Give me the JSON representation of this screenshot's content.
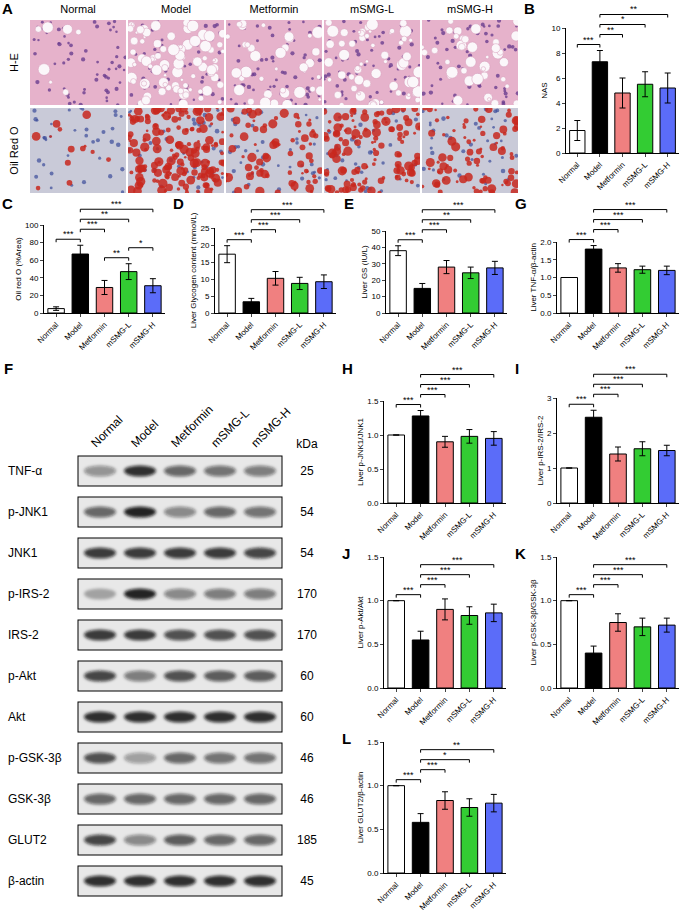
{
  "chart_data": [
    {
      "panel": "B",
      "type": "bar",
      "ylabel": "NAS",
      "categories": [
        "Normal",
        "Model",
        "Metformin",
        "mSMG-L",
        "mSMG-H"
      ],
      "values": [
        1.8,
        7.3,
        4.8,
        5.5,
        5.2
      ],
      "errors": [
        0.8,
        0.9,
        1.2,
        1.0,
        1.2
      ],
      "colors": [
        "#ffffff",
        "#000000",
        "#f08080",
        "#33cc33",
        "#5b6cf9"
      ],
      "ylim": [
        0,
        10
      ],
      "yticks": [
        0,
        2,
        4,
        6,
        8,
        10
      ],
      "significance": [
        {
          "from": "Normal",
          "to": "Model",
          "label": "***"
        },
        {
          "from": "Model",
          "to": "Metformin",
          "label": "**"
        },
        {
          "from": "Model",
          "to": "mSMG-L",
          "label": "*"
        },
        {
          "from": "Model",
          "to": "mSMG-H",
          "label": "**"
        }
      ]
    },
    {
      "panel": "C",
      "type": "bar",
      "ylabel": "Oil red O (%Area)",
      "categories": [
        "Normal",
        "Model",
        "Metformin",
        "mSMG-L",
        "mSMG-H"
      ],
      "values": [
        5,
        67,
        29,
        47,
        31
      ],
      "errors": [
        2,
        10,
        8,
        9,
        8
      ],
      "colors": [
        "#ffffff",
        "#000000",
        "#f08080",
        "#33cc33",
        "#5b6cf9"
      ],
      "ylim": [
        0,
        100
      ],
      "yticks": [
        0,
        20,
        40,
        60,
        80,
        100
      ],
      "significance": [
        {
          "from": "Normal",
          "to": "Model",
          "label": "***"
        },
        {
          "from": "Metformin",
          "to": "mSMG-L",
          "label": "**"
        },
        {
          "from": "mSMG-L",
          "to": "mSMG-H",
          "label": "*"
        },
        {
          "from": "Model",
          "to": "Metformin",
          "label": "***"
        },
        {
          "from": "Model",
          "to": "mSMG-L",
          "label": "**"
        },
        {
          "from": "Model",
          "to": "mSMG-H",
          "label": "***"
        }
      ]
    },
    {
      "panel": "D",
      "type": "bar",
      "ylabel": "Liver Glycogen content (mmol/L)",
      "categories": [
        "Normal",
        "Model",
        "Metformin",
        "mSMG-L",
        "mSMG-H"
      ],
      "values": [
        17.3,
        3.3,
        10.2,
        8.7,
        9.2
      ],
      "errors": [
        2.5,
        1.0,
        2.0,
        1.8,
        2.0
      ],
      "colors": [
        "#ffffff",
        "#000000",
        "#f08080",
        "#33cc33",
        "#5b6cf9"
      ],
      "ylim": [
        0,
        25
      ],
      "yticks": [
        0,
        5,
        10,
        15,
        20,
        25
      ],
      "significance": [
        {
          "from": "Normal",
          "to": "Model",
          "label": "***"
        },
        {
          "from": "Model",
          "to": "Metformin",
          "label": "***"
        },
        {
          "from": "Model",
          "to": "mSMG-L",
          "label": "***"
        },
        {
          "from": "Model",
          "to": "mSMG-H",
          "label": "***"
        }
      ]
    },
    {
      "panel": "E",
      "type": "bar",
      "ylabel": "Liver GS (IU/L)",
      "categories": [
        "Normal",
        "Model",
        "Metformin",
        "mSMG-L",
        "mSMG-H"
      ],
      "values": [
        38,
        15,
        28,
        24.5,
        27.5
      ],
      "errors": [
        3,
        3,
        4,
        3.5,
        4
      ],
      "colors": [
        "#ffffff",
        "#000000",
        "#f08080",
        "#33cc33",
        "#5b6cf9"
      ],
      "ylim": [
        0,
        50
      ],
      "yticks": [
        0,
        10,
        20,
        30,
        40,
        50
      ],
      "significance": [
        {
          "from": "Normal",
          "to": "Model",
          "label": "***"
        },
        {
          "from": "Model",
          "to": "Metformin",
          "label": "***"
        },
        {
          "from": "Model",
          "to": "mSMG-L",
          "label": "**"
        },
        {
          "from": "Model",
          "to": "mSMG-H",
          "label": "***"
        }
      ]
    },
    {
      "panel": "G",
      "type": "bar",
      "ylabel": "Liver TNF-α/β-actin",
      "categories": [
        "Normal",
        "Model",
        "Metformin",
        "mSMG-L",
        "mSMG-H"
      ],
      "values": [
        1.0,
        1.8,
        1.27,
        1.22,
        1.2
      ],
      "errors": [
        0,
        0.1,
        0.12,
        0.1,
        0.12
      ],
      "colors": [
        "#ffffff",
        "#000000",
        "#f08080",
        "#33cc33",
        "#5b6cf9"
      ],
      "ylim": [
        0,
        2
      ],
      "yticks": [
        {
          "value": 0,
          "label": "0.0"
        },
        0.5,
        {
          "value": 1,
          "label": "1.0"
        },
        1.5,
        {
          "value": 2,
          "label": "2.0"
        }
      ],
      "significance": [
        {
          "from": "Normal",
          "to": "Model",
          "label": "***"
        },
        {
          "from": "Model",
          "to": "Metformin",
          "label": "***"
        },
        {
          "from": "Model",
          "to": "mSMG-L",
          "label": "***"
        },
        {
          "from": "Model",
          "to": "mSMG-H",
          "label": "***"
        }
      ]
    },
    {
      "panel": "H",
      "type": "bar",
      "ylabel": "Liver p-JNK1/JNK1",
      "categories": [
        "Normal",
        "Model",
        "Metformin",
        "mSMG-L",
        "mSMG-H"
      ],
      "values": [
        1.0,
        1.28,
        0.9,
        0.98,
        0.95
      ],
      "errors": [
        0,
        0.08,
        0.08,
        0.1,
        0.1
      ],
      "colors": [
        "#ffffff",
        "#000000",
        "#f08080",
        "#33cc33",
        "#5b6cf9"
      ],
      "ylim": [
        0,
        1.5
      ],
      "yticks": [
        {
          "value": 0,
          "label": "0.0"
        },
        0.5,
        {
          "value": 1,
          "label": "1.0"
        },
        1.5
      ],
      "significance": [
        {
          "from": "Normal",
          "to": "Model",
          "label": "***"
        },
        {
          "from": "Model",
          "to": "Metformin",
          "label": "***"
        },
        {
          "from": "Model",
          "to": "mSMG-L",
          "label": "***"
        },
        {
          "from": "Model",
          "to": "mSMG-H",
          "label": "***"
        }
      ]
    },
    {
      "panel": "I",
      "type": "bar",
      "ylabel": "Liver p-IRS-2/IRS-2",
      "categories": [
        "Normal",
        "Model",
        "Metformin",
        "mSMG-L",
        "mSMG-H"
      ],
      "values": [
        1.0,
        2.45,
        1.4,
        1.55,
        1.5
      ],
      "errors": [
        0,
        0.2,
        0.2,
        0.2,
        0.15
      ],
      "colors": [
        "#ffffff",
        "#000000",
        "#f08080",
        "#33cc33",
        "#5b6cf9"
      ],
      "ylim": [
        0,
        3
      ],
      "yticks": [
        0,
        1,
        2,
        3
      ],
      "significance": [
        {
          "from": "Normal",
          "to": "Model",
          "label": "***"
        },
        {
          "from": "Model",
          "to": "Metformin",
          "label": "***"
        },
        {
          "from": "Model",
          "to": "mSMG-L",
          "label": "***"
        },
        {
          "from": "Model",
          "to": "mSMG-H",
          "label": "***"
        }
      ]
    },
    {
      "panel": "J",
      "type": "bar",
      "ylabel": "Liver p-Akt/Akt",
      "categories": [
        "Normal",
        "Model",
        "Metformin",
        "mSMG-L",
        "mSMG-H"
      ],
      "values": [
        1.0,
        0.55,
        0.9,
        0.83,
        0.86
      ],
      "errors": [
        0,
        0.1,
        0.12,
        0.1,
        0.1
      ],
      "colors": [
        "#ffffff",
        "#000000",
        "#f08080",
        "#33cc33",
        "#5b6cf9"
      ],
      "ylim": [
        0,
        1.5
      ],
      "yticks": [
        {
          "value": 0,
          "label": "0.0"
        },
        0.5,
        {
          "value": 1,
          "label": "1.0"
        },
        1.5
      ],
      "significance": [
        {
          "from": "Normal",
          "to": "Model",
          "label": "***"
        },
        {
          "from": "Model",
          "to": "Metformin",
          "label": "***"
        },
        {
          "from": "Model",
          "to": "mSMG-L",
          "label": "***"
        },
        {
          "from": "Model",
          "to": "mSMG-H",
          "label": "***"
        }
      ]
    },
    {
      "panel": "K",
      "type": "bar",
      "ylabel": "Liver p-GSK-3β/GSK-3β",
      "categories": [
        "Normal",
        "Model",
        "Metformin",
        "mSMG-L",
        "mSMG-H"
      ],
      "values": [
        1.0,
        0.4,
        0.75,
        0.7,
        0.72
      ],
      "errors": [
        0,
        0.08,
        0.1,
        0.1,
        0.08
      ],
      "colors": [
        "#ffffff",
        "#000000",
        "#f08080",
        "#33cc33",
        "#5b6cf9"
      ],
      "ylim": [
        0,
        1.5
      ],
      "yticks": [
        {
          "value": 0,
          "label": "0.0"
        },
        0.5,
        {
          "value": 1,
          "label": "1.0"
        },
        1.5
      ],
      "significance": [
        {
          "from": "Normal",
          "to": "Model",
          "label": "***"
        },
        {
          "from": "Model",
          "to": "Metformin",
          "label": "***"
        },
        {
          "from": "Model",
          "to": "mSMG-L",
          "label": "***"
        },
        {
          "from": "Model",
          "to": "mSMG-H",
          "label": "***"
        }
      ]
    },
    {
      "panel": "L",
      "type": "bar",
      "ylabel": "Liver GLUT2/β-actin",
      "categories": [
        "Normal",
        "Model",
        "Metformin",
        "mSMG-L",
        "mSMG-H"
      ],
      "values": [
        1.0,
        0.58,
        0.83,
        0.75,
        0.8
      ],
      "errors": [
        0,
        0.1,
        0.1,
        0.1,
        0.1
      ],
      "colors": [
        "#ffffff",
        "#000000",
        "#f08080",
        "#33cc33",
        "#5b6cf9"
      ],
      "ylim": [
        0,
        1.5
      ],
      "yticks": [
        {
          "value": 0,
          "label": "0.0"
        },
        0.5,
        {
          "value": 1,
          "label": "1.0"
        },
        1.5
      ],
      "significance": [
        {
          "from": "Normal",
          "to": "Model",
          "label": "***"
        },
        {
          "from": "Model",
          "to": "Metformin",
          "label": "***"
        },
        {
          "from": "Model",
          "to": "mSMG-L",
          "label": "*"
        },
        {
          "from": "Model",
          "to": "mSMG-H",
          "label": "**"
        }
      ]
    }
  ],
  "histology": {
    "panel": "A",
    "columns": [
      "Normal",
      "Model",
      "Metformin",
      "mSMG-L",
      "mSMG-H"
    ],
    "rows": [
      "H-E",
      "Oil Red O"
    ]
  },
  "western_blot": {
    "panel": "F",
    "lanes": [
      "Normal",
      "Model",
      "Metformin",
      "mSMG-L",
      "mSMG-H"
    ],
    "unit": "kDa",
    "rows": [
      {
        "label": "TNF-α",
        "kda": 25,
        "band_intensity": [
          0.4,
          0.85,
          0.6,
          0.55,
          0.5
        ]
      },
      {
        "label": "p-JNK1",
        "kda": 54,
        "band_intensity": [
          0.6,
          0.9,
          0.45,
          0.6,
          0.55
        ]
      },
      {
        "label": "JNK1",
        "kda": 54,
        "band_intensity": [
          0.8,
          0.8,
          0.8,
          0.8,
          0.75
        ]
      },
      {
        "label": "p-IRS-2",
        "kda": 170,
        "band_intensity": [
          0.3,
          0.9,
          0.45,
          0.5,
          0.5
        ]
      },
      {
        "label": "IRS-2",
        "kda": 170,
        "band_intensity": [
          0.8,
          0.8,
          0.7,
          0.7,
          0.7
        ]
      },
      {
        "label": "p-Akt",
        "kda": 60,
        "band_intensity": [
          0.75,
          0.5,
          0.7,
          0.65,
          0.65
        ]
      },
      {
        "label": "Akt",
        "kda": 60,
        "band_intensity": [
          0.85,
          0.85,
          0.85,
          0.85,
          0.85
        ]
      },
      {
        "label": "p-GSK-3β",
        "kda": 46,
        "band_intensity": [
          0.7,
          0.35,
          0.6,
          0.55,
          0.55
        ]
      },
      {
        "label": "GSK-3β",
        "kda": 46,
        "band_intensity": [
          0.6,
          0.6,
          0.6,
          0.6,
          0.6
        ]
      },
      {
        "label": "GLUT2",
        "kda": 185,
        "band_intensity": [
          0.75,
          0.45,
          0.65,
          0.6,
          0.6
        ]
      },
      {
        "label": "β-actin",
        "kda": 45,
        "band_intensity": [
          0.85,
          0.85,
          0.85,
          0.85,
          0.85
        ]
      }
    ]
  }
}
